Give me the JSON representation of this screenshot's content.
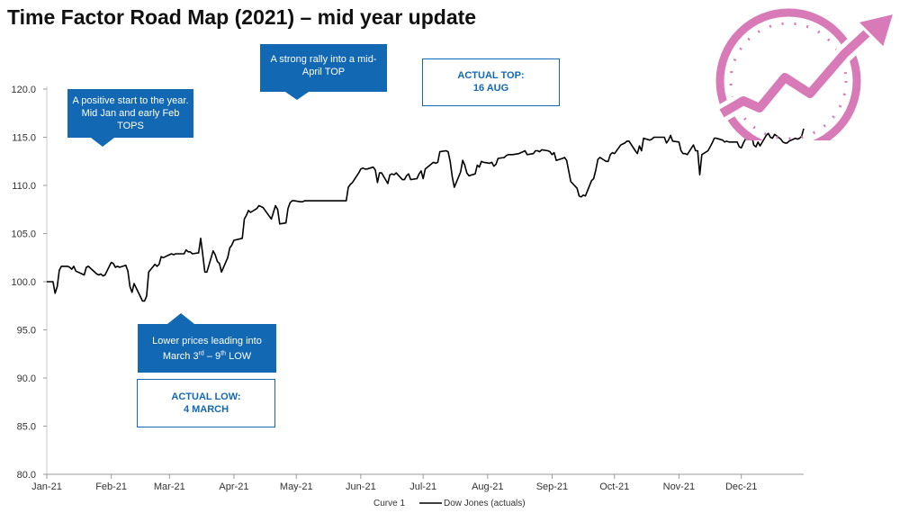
{
  "page": {
    "title": "Time Factor Road Map (2021) – mid year update"
  },
  "callouts": {
    "positive_start": "A positive start to the year. Mid Jan and early Feb TOPS",
    "strong_rally": "A strong rally into a mid-April TOP",
    "actual_top": "ACTUAL TOP:\n16 AUG",
    "lower_prices": "Lower prices leading into March 3rd – 9th  LOW",
    "actual_low": "ACTUAL LOW:\n4 MARCH"
  },
  "logo": {
    "icon": "growth-gauge-arrow-icon",
    "color": "#d87ab8"
  },
  "colors": {
    "callout_fill": "#1268b3",
    "callout_text": "#ffffff",
    "line": "#000000"
  },
  "chart_data": {
    "type": "line",
    "title": "Time Factor Road Map (2021) – mid year update",
    "xlabel": "",
    "ylabel": "",
    "ylim": [
      80.0,
      120.0
    ],
    "xlim": [
      "2021-01-01",
      "2021-12-31"
    ],
    "grid": false,
    "legend_placement": "bottom",
    "y_ticks": [
      "80.0",
      "85.0",
      "90.0",
      "95.0",
      "100.0",
      "105.0",
      "110.0",
      "115.0",
      "120.0"
    ],
    "x_ticks": [
      {
        "label": "Jan-21",
        "date": "2021-01-01"
      },
      {
        "label": "Feb-21",
        "date": "2021-02-01"
      },
      {
        "label": "Mar-21",
        "date": "2021-03-01"
      },
      {
        "label": "Apr-21",
        "date": "2021-04-01"
      },
      {
        "label": "May-21",
        "date": "2021-05-01"
      },
      {
        "label": "Jun-21",
        "date": "2021-06-01"
      },
      {
        "label": "Jul-21",
        "date": "2021-07-01"
      },
      {
        "label": "Aug-21",
        "date": "2021-08-01"
      },
      {
        "label": "Sep-21",
        "date": "2021-09-01"
      },
      {
        "label": "Oct-21",
        "date": "2021-10-01"
      },
      {
        "label": "Nov-21",
        "date": "2021-11-01"
      },
      {
        "label": "Dec-21",
        "date": "2021-12-01"
      }
    ],
    "series": [
      {
        "name": "Curve 1",
        "color": "#ffffff",
        "points": []
      },
      {
        "name": "Dow Jones (actuals)",
        "color": "#000000",
        "points": [
          [
            "2021-01-01",
            100.0
          ],
          [
            "2021-01-04",
            100.0
          ],
          [
            "2021-01-05",
            98.8
          ],
          [
            "2021-01-06",
            99.5
          ],
          [
            "2021-01-07",
            101.2
          ],
          [
            "2021-01-08",
            101.6
          ],
          [
            "2021-01-11",
            101.6
          ],
          [
            "2021-01-12",
            101.5
          ],
          [
            "2021-01-13",
            101.3
          ],
          [
            "2021-01-14",
            101.6
          ],
          [
            "2021-01-15",
            101.1
          ],
          [
            "2021-01-19",
            100.7
          ],
          [
            "2021-01-20",
            101.5
          ],
          [
            "2021-01-21",
            101.6
          ],
          [
            "2021-01-22",
            101.4
          ],
          [
            "2021-01-25",
            100.8
          ],
          [
            "2021-01-26",
            100.7
          ],
          [
            "2021-01-27",
            100.8
          ],
          [
            "2021-01-28",
            100.6
          ],
          [
            "2021-01-29",
            100.7
          ],
          [
            "2021-02-01",
            102.0
          ],
          [
            "2021-02-02",
            101.9
          ],
          [
            "2021-02-03",
            101.5
          ],
          [
            "2021-02-04",
            101.6
          ],
          [
            "2021-02-05",
            101.5
          ],
          [
            "2021-02-08",
            101.7
          ],
          [
            "2021-02-09",
            101.1
          ],
          [
            "2021-02-10",
            99.5
          ],
          [
            "2021-02-11",
            98.9
          ],
          [
            "2021-02-12",
            99.8
          ],
          [
            "2021-02-16",
            98.0
          ],
          [
            "2021-02-17",
            98.0
          ],
          [
            "2021-02-18",
            98.5
          ],
          [
            "2021-02-19",
            101.0
          ],
          [
            "2021-02-22",
            101.8
          ],
          [
            "2021-02-23",
            101.6
          ],
          [
            "2021-02-24",
            101.8
          ],
          [
            "2021-02-25",
            102.6
          ],
          [
            "2021-02-26",
            102.5
          ],
          [
            "2021-03-01",
            102.8
          ],
          [
            "2021-03-02",
            102.9
          ],
          [
            "2021-03-03",
            102.8
          ],
          [
            "2021-03-04",
            102.9
          ],
          [
            "2021-03-05",
            102.9
          ],
          [
            "2021-03-08",
            102.9
          ],
          [
            "2021-03-09",
            103.3
          ],
          [
            "2021-03-10",
            103.1
          ],
          [
            "2021-03-11",
            103.1
          ],
          [
            "2021-03-12",
            102.9
          ],
          [
            "2021-03-15",
            103.0
          ],
          [
            "2021-03-16",
            104.5
          ],
          [
            "2021-03-17",
            102.8
          ],
          [
            "2021-03-18",
            101.0
          ],
          [
            "2021-03-19",
            101.0
          ],
          [
            "2021-03-22",
            103.2
          ],
          [
            "2021-03-23",
            102.8
          ],
          [
            "2021-03-24",
            102.1
          ],
          [
            "2021-03-25",
            101.9
          ],
          [
            "2021-03-26",
            101.0
          ],
          [
            "2021-03-29",
            102.5
          ],
          [
            "2021-03-30",
            103.5
          ],
          [
            "2021-03-31",
            103.8
          ],
          [
            "2021-04-01",
            104.3
          ],
          [
            "2021-04-05",
            104.5
          ],
          [
            "2021-04-06",
            106.5
          ],
          [
            "2021-04-07",
            106.9
          ],
          [
            "2021-04-08",
            107.4
          ],
          [
            "2021-04-09",
            107.2
          ],
          [
            "2021-04-12",
            107.6
          ],
          [
            "2021-04-13",
            107.9
          ],
          [
            "2021-04-14",
            107.8
          ],
          [
            "2021-04-15",
            107.7
          ],
          [
            "2021-04-16",
            107.4
          ],
          [
            "2021-04-19",
            106.5
          ],
          [
            "2021-04-20",
            107.2
          ],
          [
            "2021-04-21",
            107.9
          ],
          [
            "2021-04-22",
            107.5
          ],
          [
            "2021-04-23",
            106.0
          ],
          [
            "2021-04-26",
            106.1
          ],
          [
            "2021-04-27",
            107.6
          ],
          [
            "2021-04-28",
            108.2
          ],
          [
            "2021-04-29",
            108.4
          ],
          [
            "2021-04-30",
            108.4
          ],
          [
            "2021-05-03",
            108.3
          ],
          [
            "2021-05-04",
            108.3
          ],
          [
            "2021-05-05",
            108.4
          ],
          [
            "2021-05-06",
            108.4
          ],
          [
            "2021-05-07",
            108.4
          ],
          [
            "2021-05-10",
            108.4
          ],
          [
            "2021-05-11",
            108.4
          ],
          [
            "2021-05-12",
            108.4
          ],
          [
            "2021-05-13",
            108.4
          ],
          [
            "2021-05-14",
            108.4
          ],
          [
            "2021-05-17",
            108.4
          ],
          [
            "2021-05-18",
            108.4
          ],
          [
            "2021-05-19",
            108.4
          ],
          [
            "2021-05-20",
            108.4
          ],
          [
            "2021-05-21",
            108.4
          ],
          [
            "2021-05-24",
            108.4
          ],
          [
            "2021-05-25",
            108.4
          ],
          [
            "2021-05-26",
            109.8
          ],
          [
            "2021-05-27",
            110.1
          ],
          [
            "2021-05-28",
            110.3
          ],
          [
            "2021-05-31",
            111.3
          ],
          [
            "2021-06-01",
            111.7
          ],
          [
            "2021-06-02",
            111.8
          ],
          [
            "2021-06-03",
            111.7
          ],
          [
            "2021-06-04",
            111.7
          ],
          [
            "2021-06-07",
            111.9
          ],
          [
            "2021-06-08",
            111.6
          ],
          [
            "2021-06-09",
            110.3
          ],
          [
            "2021-06-10",
            111.3
          ],
          [
            "2021-06-11",
            111.3
          ],
          [
            "2021-06-14",
            110.2
          ],
          [
            "2021-06-15",
            111.1
          ],
          [
            "2021-06-16",
            111.2
          ],
          [
            "2021-06-17",
            111.1
          ],
          [
            "2021-06-18",
            111.3
          ],
          [
            "2021-06-21",
            110.6
          ],
          [
            "2021-06-22",
            110.6
          ],
          [
            "2021-06-23",
            111.0
          ],
          [
            "2021-06-24",
            111.2
          ],
          [
            "2021-06-25",
            110.6
          ],
          [
            "2021-06-28",
            110.7
          ],
          [
            "2021-06-29",
            111.2
          ],
          [
            "2021-06-30",
            111.5
          ],
          [
            "2021-07-01",
            110.7
          ],
          [
            "2021-07-02",
            111.7
          ],
          [
            "2021-07-06",
            112.4
          ],
          [
            "2021-07-07",
            112.3
          ],
          [
            "2021-07-08",
            112.4
          ],
          [
            "2021-07-09",
            113.5
          ],
          [
            "2021-07-12",
            113.6
          ],
          [
            "2021-07-13",
            113.5
          ],
          [
            "2021-07-14",
            112.5
          ],
          [
            "2021-07-15",
            110.9
          ],
          [
            "2021-07-16",
            109.8
          ],
          [
            "2021-07-19",
            111.4
          ],
          [
            "2021-07-20",
            112.6
          ],
          [
            "2021-07-21",
            112.1
          ],
          [
            "2021-07-22",
            111.3
          ],
          [
            "2021-07-23",
            111.0
          ],
          [
            "2021-07-26",
            111.2
          ],
          [
            "2021-07-27",
            112.1
          ],
          [
            "2021-07-28",
            111.9
          ],
          [
            "2021-07-29",
            112.5
          ],
          [
            "2021-07-30",
            112.4
          ],
          [
            "2021-08-02",
            112.3
          ],
          [
            "2021-08-03",
            112.4
          ],
          [
            "2021-08-04",
            112.0
          ],
          [
            "2021-08-05",
            112.2
          ],
          [
            "2021-08-06",
            112.8
          ],
          [
            "2021-08-09",
            112.9
          ],
          [
            "2021-08-10",
            113.1
          ],
          [
            "2021-08-11",
            113.2
          ],
          [
            "2021-08-12",
            113.2
          ],
          [
            "2021-08-13",
            113.2
          ],
          [
            "2021-08-16",
            113.3
          ],
          [
            "2021-08-17",
            113.4
          ],
          [
            "2021-08-18",
            113.5
          ],
          [
            "2021-08-19",
            113.6
          ],
          [
            "2021-08-20",
            113.2
          ],
          [
            "2021-08-23",
            113.3
          ],
          [
            "2021-08-24",
            113.6
          ],
          [
            "2021-08-25",
            113.6
          ],
          [
            "2021-08-26",
            113.5
          ],
          [
            "2021-08-27",
            113.7
          ],
          [
            "2021-08-30",
            113.6
          ],
          [
            "2021-08-31",
            113.5
          ],
          [
            "2021-09-01",
            113.2
          ],
          [
            "2021-09-02",
            113.4
          ],
          [
            "2021-09-03",
            112.6
          ],
          [
            "2021-09-06",
            112.8
          ],
          [
            "2021-09-07",
            112.9
          ],
          [
            "2021-09-08",
            112.6
          ],
          [
            "2021-09-09",
            111.5
          ],
          [
            "2021-09-10",
            110.4
          ],
          [
            "2021-09-13",
            109.7
          ],
          [
            "2021-09-14",
            108.9
          ],
          [
            "2021-09-15",
            108.8
          ],
          [
            "2021-09-16",
            109.0
          ],
          [
            "2021-09-17",
            108.9
          ],
          [
            "2021-09-20",
            110.5
          ],
          [
            "2021-09-21",
            110.7
          ],
          [
            "2021-09-22",
            111.6
          ],
          [
            "2021-09-23",
            112.7
          ],
          [
            "2021-09-24",
            112.9
          ],
          [
            "2021-09-27",
            112.5
          ],
          [
            "2021-09-28",
            112.5
          ],
          [
            "2021-09-29",
            113.2
          ],
          [
            "2021-09-30",
            113.4
          ],
          [
            "2021-10-01",
            113.3
          ],
          [
            "2021-10-04",
            114.2
          ],
          [
            "2021-10-05",
            114.3
          ],
          [
            "2021-10-06",
            114.4
          ],
          [
            "2021-10-07",
            114.6
          ],
          [
            "2021-10-08",
            114.6
          ],
          [
            "2021-10-11",
            113.6
          ],
          [
            "2021-10-12",
            113.3
          ],
          [
            "2021-10-13",
            114.1
          ],
          [
            "2021-10-14",
            113.6
          ],
          [
            "2021-10-15",
            114.9
          ],
          [
            "2021-10-18",
            114.7
          ],
          [
            "2021-10-19",
            114.8
          ],
          [
            "2021-10-20",
            115.0
          ],
          [
            "2021-10-21",
            115.0
          ],
          [
            "2021-10-22",
            115.0
          ],
          [
            "2021-10-25",
            115.0
          ],
          [
            "2021-10-26",
            114.4
          ],
          [
            "2021-10-27",
            114.7
          ],
          [
            "2021-10-28",
            115.2
          ],
          [
            "2021-10-29",
            114.6
          ],
          [
            "2021-11-01",
            114.5
          ],
          [
            "2021-11-02",
            113.6
          ],
          [
            "2021-11-03",
            113.3
          ],
          [
            "2021-11-04",
            113.3
          ],
          [
            "2021-11-05",
            113.2
          ],
          [
            "2021-11-08",
            114.2
          ],
          [
            "2021-11-09",
            113.6
          ],
          [
            "2021-11-10",
            113.6
          ],
          [
            "2021-11-11",
            111.1
          ],
          [
            "2021-11-12",
            113.2
          ],
          [
            "2021-11-15",
            113.6
          ],
          [
            "2021-11-16",
            114.0
          ],
          [
            "2021-11-17",
            114.4
          ],
          [
            "2021-11-18",
            114.9
          ],
          [
            "2021-11-19",
            114.9
          ],
          [
            "2021-11-22",
            114.7
          ],
          [
            "2021-11-23",
            114.5
          ],
          [
            "2021-11-24",
            114.6
          ],
          [
            "2021-11-25",
            114.5
          ],
          [
            "2021-11-26",
            114.5
          ],
          [
            "2021-11-29",
            114.5
          ],
          [
            "2021-11-30",
            114.0
          ],
          [
            "2021-12-01",
            113.9
          ],
          [
            "2021-12-02",
            114.4
          ],
          [
            "2021-12-03",
            114.8
          ],
          [
            "2021-12-06",
            115.2
          ],
          [
            "2021-12-07",
            114.2
          ],
          [
            "2021-12-08",
            114.0
          ],
          [
            "2021-12-09",
            114.5
          ],
          [
            "2021-12-10",
            114.1
          ],
          [
            "2021-12-13",
            115.2
          ],
          [
            "2021-12-14",
            115.4
          ],
          [
            "2021-12-15",
            115.0
          ],
          [
            "2021-12-16",
            114.9
          ],
          [
            "2021-12-17",
            115.3
          ],
          [
            "2021-12-20",
            114.8
          ],
          [
            "2021-12-21",
            114.5
          ],
          [
            "2021-12-22",
            114.4
          ],
          [
            "2021-12-23",
            114.4
          ],
          [
            "2021-12-24",
            114.6
          ],
          [
            "2021-12-27",
            114.9
          ],
          [
            "2021-12-28",
            114.8
          ],
          [
            "2021-12-29",
            114.9
          ],
          [
            "2021-12-30",
            115.1
          ],
          [
            "2021-12-31",
            115.9
          ]
        ]
      }
    ]
  }
}
